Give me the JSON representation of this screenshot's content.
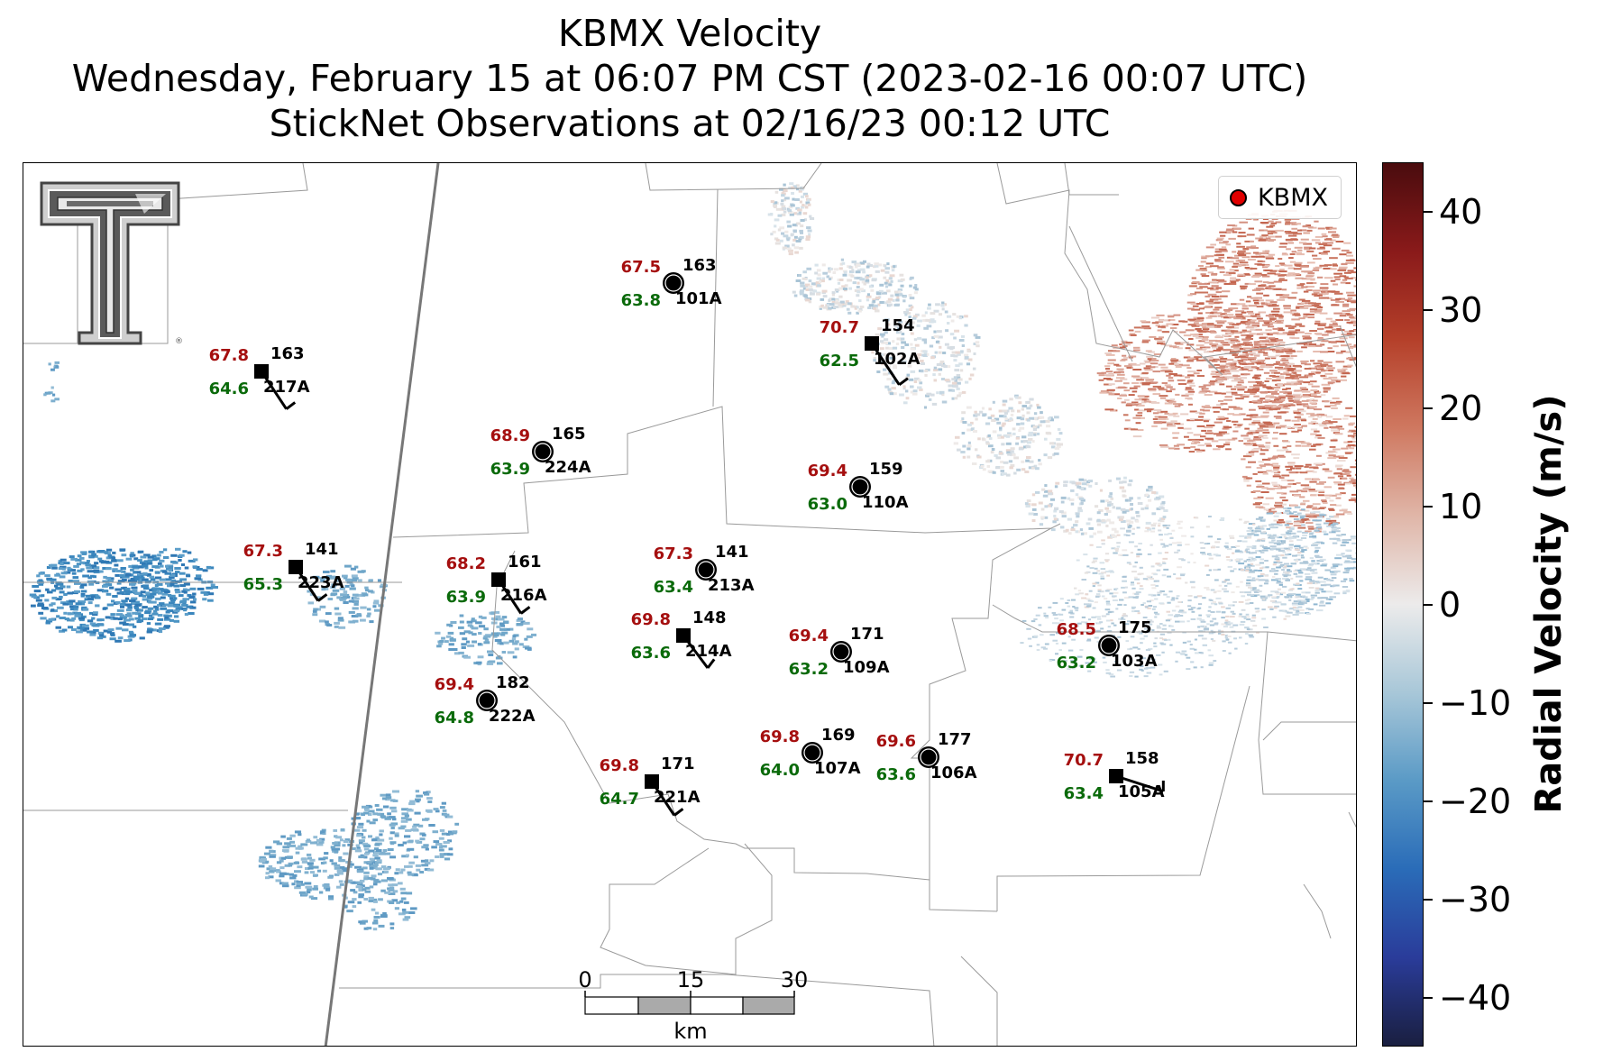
{
  "title": {
    "line1": "KBMX Velocity",
    "line2": "Wednesday, February 15 at 06:07 PM CST (2023-02-16 00:07 UTC)",
    "line3": "StickNet Observations at 02/16/23 00:12 UTC"
  },
  "legend": {
    "label": "KBMX",
    "marker_color": "#e00000"
  },
  "colorbar": {
    "label": "Radial Velocity (m/s)",
    "range": [
      -45,
      45
    ],
    "ticks": [
      {
        "value": 40,
        "text": "40"
      },
      {
        "value": 30,
        "text": "30"
      },
      {
        "value": 20,
        "text": "20"
      },
      {
        "value": 10,
        "text": "10"
      },
      {
        "value": 0,
        "text": "0"
      },
      {
        "value": -10,
        "text": "−10"
      },
      {
        "value": -20,
        "text": "−20"
      },
      {
        "value": -30,
        "text": "−30"
      },
      {
        "value": -40,
        "text": "−40"
      }
    ],
    "colors": [
      "#1a1f40",
      "#2a3c9a",
      "#2a6cb8",
      "#5a9ac6",
      "#a8c7d8",
      "#ecebeb",
      "#e0b6a8",
      "#cf7860",
      "#b5402a",
      "#8a1a1a",
      "#4a0c0e"
    ]
  },
  "temp_color": "#a50f0f",
  "dew_color": "#0a6a0a",
  "stations": [
    {
      "id": "101A",
      "temp": "67.5",
      "dew": "63.8",
      "pressure": "163",
      "type": "circle"
    },
    {
      "id": "102A",
      "temp": "70.7",
      "dew": "62.5",
      "pressure": "154",
      "type": "square"
    },
    {
      "id": "217A",
      "temp": "67.8",
      "dew": "64.6",
      "pressure": "163",
      "type": "square"
    },
    {
      "id": "224A",
      "temp": "68.9",
      "dew": "63.9",
      "pressure": "165",
      "type": "circle"
    },
    {
      "id": "110A",
      "temp": "69.4",
      "dew": "63.0",
      "pressure": "159",
      "type": "circle"
    },
    {
      "id": "223A",
      "temp": "67.3",
      "dew": "65.3",
      "pressure": "141",
      "type": "square"
    },
    {
      "id": "216A",
      "temp": "68.2",
      "dew": "63.9",
      "pressure": "161",
      "type": "square"
    },
    {
      "id": "213A",
      "temp": "67.3",
      "dew": "63.4",
      "pressure": "141",
      "type": "circle"
    },
    {
      "id": "214A",
      "temp": "69.8",
      "dew": "63.6",
      "pressure": "148",
      "type": "square"
    },
    {
      "id": "109A",
      "temp": "69.4",
      "dew": "63.2",
      "pressure": "171",
      "type": "circle"
    },
    {
      "id": "103A",
      "temp": "68.5",
      "dew": "63.2",
      "pressure": "175",
      "type": "circle"
    },
    {
      "id": "222A",
      "temp": "69.4",
      "dew": "64.8",
      "pressure": "182",
      "type": "circle"
    },
    {
      "id": "107A",
      "temp": "69.8",
      "dew": "64.0",
      "pressure": "169",
      "type": "circle"
    },
    {
      "id": "106A",
      "temp": "69.6",
      "dew": "63.6",
      "pressure": "177",
      "type": "circle"
    },
    {
      "id": "221A",
      "temp": "69.8",
      "dew": "64.7",
      "pressure": "171",
      "type": "square"
    },
    {
      "id": "105A",
      "temp": "70.7",
      "dew": "63.4",
      "pressure": "158",
      "type": "square"
    }
  ],
  "scale_bar": {
    "labels": [
      "0",
      "15",
      "30"
    ],
    "unit": "km"
  },
  "logo": {
    "name": "Texas Tech Double T"
  }
}
